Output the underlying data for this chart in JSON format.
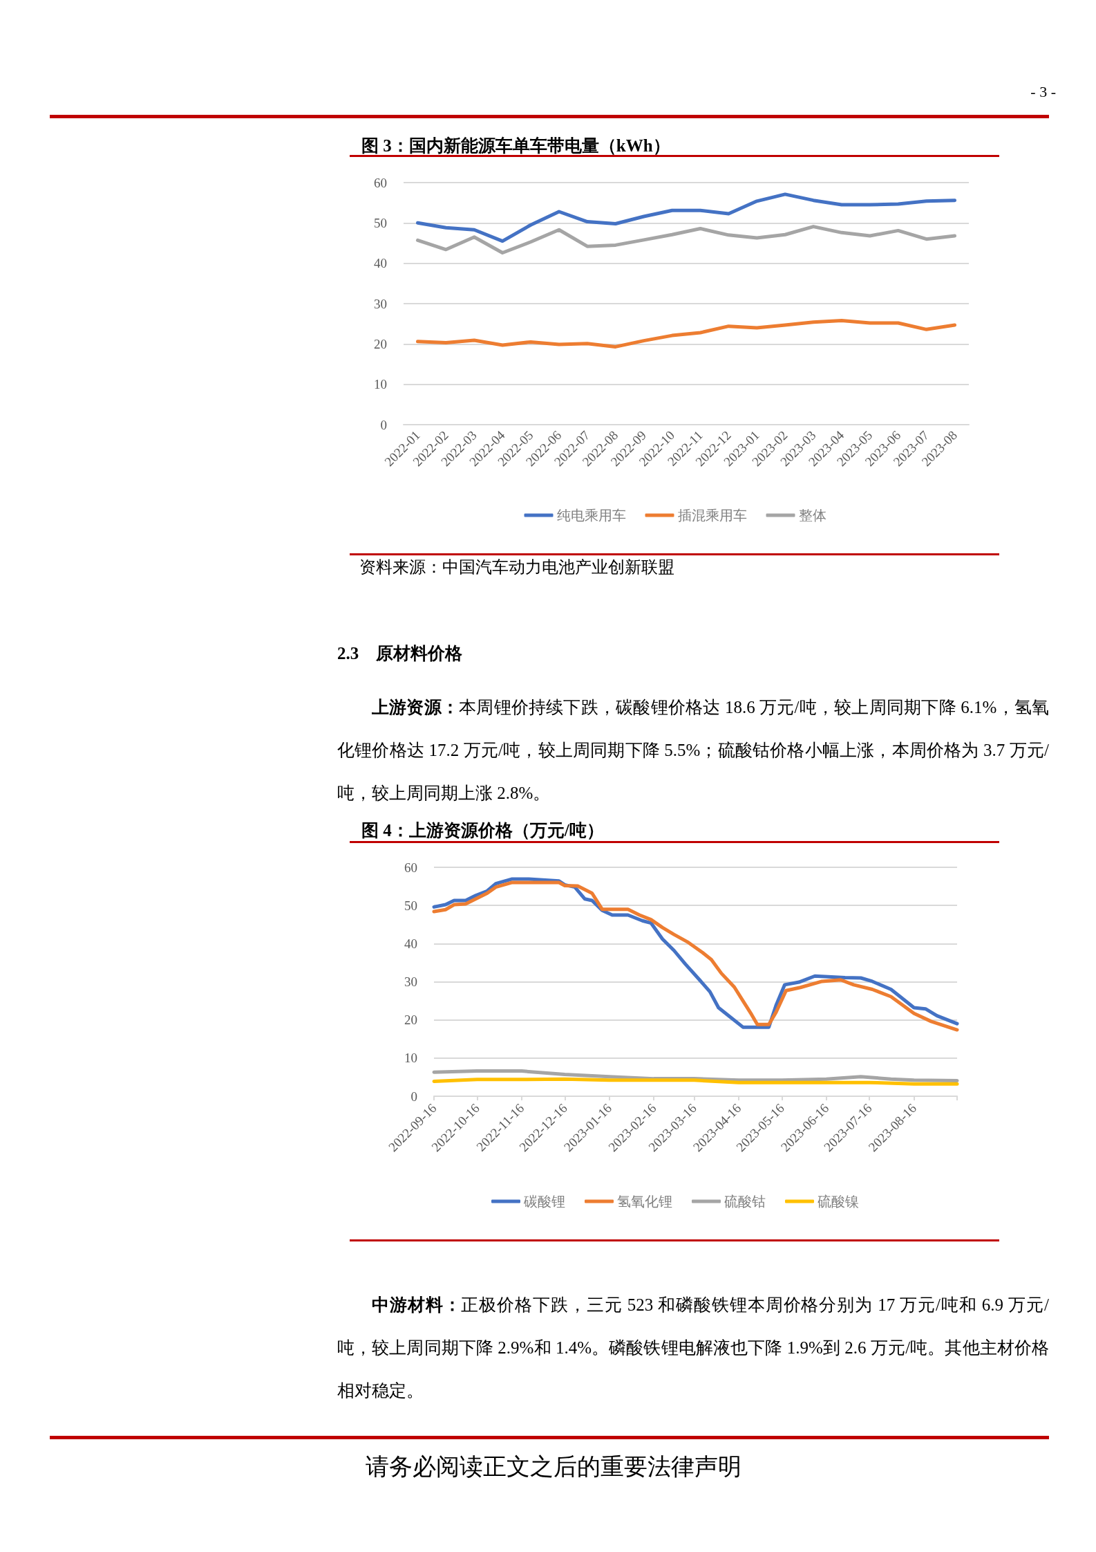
{
  "chart_data": [
    {
      "type": "line",
      "title": "图 3：国内新能源车单车带电量（kWh）",
      "categories": [
        "2022-01",
        "2022-02",
        "2022-03",
        "2022-04",
        "2022-05",
        "2022-06",
        "2022-07",
        "2022-08",
        "2022-09",
        "2022-10",
        "2022-11",
        "2022-12",
        "2023-01",
        "2023-02",
        "2023-03",
        "2023-04",
        "2023-05",
        "2023-06",
        "2023-07",
        "2023-08"
      ],
      "series": [
        {
          "name": "纯电乘用车",
          "color": "#4472c4",
          "values": [
            50.0,
            48.8,
            48.3,
            45.5,
            49.5,
            52.8,
            50.3,
            49.8,
            51.6,
            53.1,
            53.1,
            52.3,
            55.4,
            57.1,
            55.6,
            54.5,
            54.5,
            54.7,
            55.4,
            55.6
          ]
        },
        {
          "name": "插混乘用车",
          "color": "#ed7d31",
          "values": [
            20.6,
            20.3,
            20.9,
            19.7,
            20.5,
            19.9,
            20.1,
            19.3,
            20.8,
            22.1,
            22.8,
            24.4,
            24.0,
            24.7,
            25.4,
            25.8,
            25.2,
            25.2,
            23.6,
            24.7
          ]
        },
        {
          "name": "整体",
          "color": "#a5a5a5",
          "values": [
            45.7,
            43.4,
            46.5,
            42.6,
            45.3,
            48.3,
            44.2,
            44.5,
            45.8,
            47.1,
            48.6,
            47.0,
            46.3,
            47.1,
            49.1,
            47.6,
            46.8,
            48.1,
            46.0,
            46.8
          ]
        }
      ],
      "ylim": [
        0,
        60
      ],
      "yticks": [
        0,
        10,
        20,
        30,
        40,
        50,
        60
      ],
      "grid": "y",
      "legend": "bottom",
      "marker": "none",
      "annotations": [
        "- 3 -",
        "资料来源：中国汽车动力电池产业创新联盟"
      ]
    },
    {
      "type": "line",
      "title": "图 4：上游资源价格（万元/吨）",
      "series": [
        {
          "name": "碳酸锂",
          "color": "#4472c4",
          "x": [
            "2022-09-16",
            "2022-09-24",
            "2022-09-30",
            "2022-10-08",
            "2022-10-15",
            "2022-10-23",
            "2022-10-29",
            "2022-11-09",
            "2022-11-21",
            "2022-12-12",
            "2022-12-16",
            "2022-12-23",
            "2022-12-30",
            "2023-01-04",
            "2023-01-11",
            "2023-01-18",
            "2023-01-29",
            "2023-02-08",
            "2023-02-14",
            "2023-02-22",
            "2023-03-02",
            "2023-03-10",
            "2023-03-20",
            "2023-03-27",
            "2023-04-02",
            "2023-04-10",
            "2023-04-19",
            "2023-05-07",
            "2023-05-12",
            "2023-05-18",
            "2023-05-28",
            "2023-06-08",
            "2023-06-29",
            "2023-07-10",
            "2023-07-18",
            "2023-07-31",
            "2023-08-16",
            "2023-08-24",
            "2023-09-01",
            "2023-09-15"
          ],
          "values": [
            49.6,
            50.2,
            51.3,
            51.3,
            52.6,
            53.8,
            55.7,
            56.9,
            56.9,
            56.4,
            55.4,
            54.8,
            51.7,
            51.3,
            48.7,
            47.5,
            47.5,
            46.0,
            45.4,
            41.2,
            38.2,
            34.6,
            30.4,
            27.4,
            23.2,
            20.8,
            18.1,
            18.1,
            23.8,
            29.2,
            29.9,
            31.5,
            31.1,
            31.0,
            30.1,
            28.0,
            23.2,
            22.9,
            21.1,
            19.0
          ]
        },
        {
          "name": "氢氧化锂",
          "color": "#ed7d31",
          "x": [
            "2022-09-16",
            "2022-09-24",
            "2022-09-30",
            "2022-10-08",
            "2022-10-15",
            "2022-10-23",
            "2022-10-29",
            "2022-11-09",
            "2022-12-12",
            "2022-12-16",
            "2022-12-25",
            "2023-01-04",
            "2023-01-11",
            "2023-01-29",
            "2023-02-06",
            "2023-02-14",
            "2023-02-22",
            "2023-03-02",
            "2023-03-12",
            "2023-03-22",
            "2023-03-28",
            "2023-04-04",
            "2023-04-13",
            "2023-04-19",
            "2023-04-25",
            "2023-04-29",
            "2023-05-07",
            "2023-05-12",
            "2023-05-19",
            "2023-05-29",
            "2023-06-13",
            "2023-06-26",
            "2023-07-05",
            "2023-07-18",
            "2023-07-31",
            "2023-08-16",
            "2023-08-28",
            "2023-09-15"
          ],
          "values": [
            48.4,
            48.9,
            50.2,
            50.4,
            51.7,
            53.2,
            54.8,
            56.0,
            56.0,
            55.2,
            55.1,
            53.2,
            49.0,
            49.0,
            47.5,
            46.3,
            44.2,
            42.4,
            40.3,
            37.6,
            35.8,
            32.2,
            28.6,
            25.0,
            21.4,
            18.8,
            18.8,
            22.0,
            27.7,
            28.5,
            30.1,
            30.5,
            29.2,
            28.0,
            26.1,
            21.7,
            19.6,
            17.4
          ]
        },
        {
          "name": "硫酸钴",
          "color": "#a5a5a5",
          "x": [
            "2022-09-16",
            "2022-10-16",
            "2022-11-16",
            "2022-12-16",
            "2023-01-16",
            "2023-02-16",
            "2023-03-16",
            "2023-04-16",
            "2023-05-16",
            "2023-06-16",
            "2023-07-10",
            "2023-07-31",
            "2023-08-16",
            "2023-09-15"
          ],
          "values": [
            6.3,
            6.6,
            6.6,
            5.7,
            5.1,
            4.6,
            4.6,
            4.2,
            4.2,
            4.5,
            5.1,
            4.5,
            4.2,
            4.1
          ]
        },
        {
          "name": "硫酸镍",
          "color": "#ffc000",
          "x": [
            "2022-09-16",
            "2022-10-16",
            "2022-11-16",
            "2022-12-16",
            "2023-01-16",
            "2023-02-16",
            "2023-03-16",
            "2023-04-16",
            "2023-05-16",
            "2023-06-16",
            "2023-07-16",
            "2023-08-16",
            "2023-09-15"
          ],
          "values": [
            3.9,
            4.4,
            4.4,
            4.5,
            4.2,
            4.2,
            4.2,
            3.6,
            3.6,
            3.6,
            3.6,
            3.2,
            3.2
          ]
        }
      ],
      "xlim": [
        "2022-09-16",
        "2023-09-15"
      ],
      "xticks": [
        "2022-09-16",
        "2022-10-16",
        "2022-11-16",
        "2022-12-16",
        "2023-01-16",
        "2023-02-16",
        "2023-03-16",
        "2023-04-16",
        "2023-05-16",
        "2023-06-16",
        "2023-07-16",
        "2023-08-16"
      ],
      "ylim": [
        0,
        60
      ],
      "yticks": [
        0,
        10,
        20,
        30,
        40,
        50,
        60
      ],
      "grid": "y",
      "legend": "bottom",
      "marker": "none",
      "annotations": [
        "2.3　原材料价格",
        "上游资源：本周锂价持续下跌，碳酸锂价格达 18.6 万元/吨，较上周同期下降 6.1%，氢氧化锂价格达 17.2 万元/吨，较上周同期下降 5.5%；硫酸钴价格小幅上涨，本周价格为 3.7 万元/吨，较上周同期上涨 2.8%。",
        "中游材料：正极价格下跌，三元 523 和磷酸铁锂本周价格分别为 17 万元/吨和 6.9 万元/吨，较上周同期下降 2.9%和 1.4%。磷酸铁锂电解液也下降 1.9%到 2.6 万元/吨。其他主材价格相对稳定。",
        "请务必阅读正文之后的重要法律声明"
      ]
    }
  ]
}
